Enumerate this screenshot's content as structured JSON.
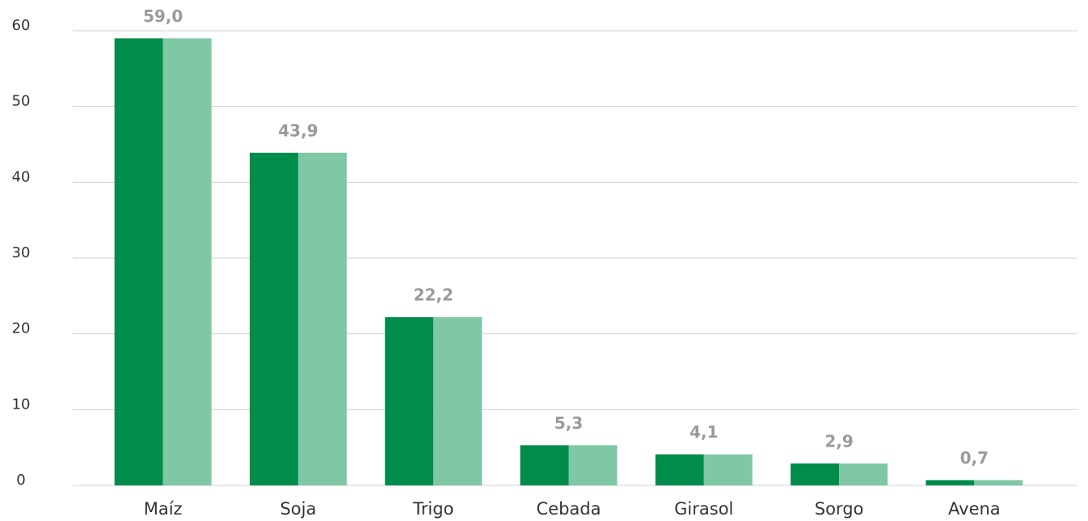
{
  "chart_data": {
    "type": "bar",
    "categories": [
      "Maíz",
      "Soja",
      "Trigo",
      "Cebada",
      "Girasol",
      "Sorgo",
      "Avena"
    ],
    "series": [
      {
        "color": "#008c4a",
        "values": [
          59.0,
          43.9,
          22.2,
          5.3,
          4.1,
          2.9,
          0.7
        ],
        "value_labels": [
          "59,0",
          "43,9",
          "22,2",
          "5,3",
          "4,1",
          "2,9",
          "0,7"
        ]
      },
      {
        "color": "#80c7a5",
        "values": [
          59.0,
          43.9,
          22.2,
          5.3,
          4.1,
          2.9,
          0.7
        ]
      }
    ],
    "ylim": [
      0,
      60
    ],
    "yticks": [
      0,
      10,
      20,
      30,
      40,
      50,
      60
    ],
    "grid": true
  }
}
